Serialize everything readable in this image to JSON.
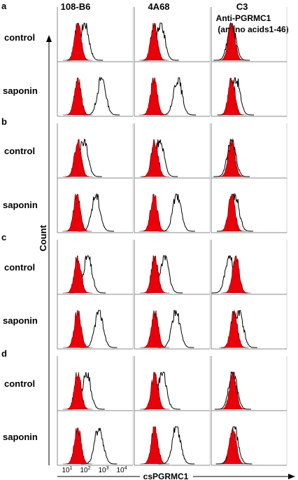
{
  "figure": {
    "columns": [
      {
        "title": "108-B6"
      },
      {
        "title": "4A68"
      },
      {
        "title": "C3",
        "subtitle_1": "Anti-PGRMC1",
        "subtitle_2": "(amino acids1-46)"
      }
    ],
    "panels": [
      {
        "label": "a",
        "rows": [
          "control",
          "saponin"
        ]
      },
      {
        "label": "b",
        "rows": [
          "control",
          "saponin"
        ]
      },
      {
        "label": "c",
        "rows": [
          "control",
          "saponin"
        ]
      },
      {
        "label": "d",
        "rows": [
          "control",
          "saponin"
        ]
      }
    ],
    "y_axis_label": "Count",
    "x_axis_label": "csPGRMC1",
    "x_ticks": [
      {
        "base": "10",
        "exp": "1"
      },
      {
        "base": "10",
        "exp": "2"
      },
      {
        "base": "10",
        "exp": "3"
      },
      {
        "base": "10",
        "exp": "4"
      }
    ],
    "colors": {
      "filled_histogram": "#e8000b",
      "open_histogram": "#000000",
      "frame": "#888888"
    },
    "chart_data": [
      {
        "type": "area",
        "panel": "a",
        "row": "control",
        "column": "108-B6",
        "log_scale_x": true,
        "xlim": [
          1,
          10000
        ],
        "filled_peak": 12,
        "open_peak": 28
      },
      {
        "type": "area",
        "panel": "a",
        "row": "control",
        "column": "4A68",
        "log_scale_x": true,
        "xlim": [
          1,
          10000
        ],
        "filled_peak": 11,
        "open_peak": 25
      },
      {
        "type": "area",
        "panel": "a",
        "row": "control",
        "column": "C3",
        "log_scale_x": true,
        "xlim": [
          1,
          10000
        ],
        "filled_peak": 12,
        "open_peak": 12
      },
      {
        "type": "area",
        "panel": "a",
        "row": "saponin",
        "column": "108-B6",
        "log_scale_x": true,
        "xlim": [
          1,
          10000
        ],
        "filled_peak": 12,
        "open_peak": 220
      },
      {
        "type": "area",
        "panel": "a",
        "row": "saponin",
        "column": "4A68",
        "log_scale_x": true,
        "xlim": [
          1,
          10000
        ],
        "filled_peak": 11,
        "open_peak": 200
      },
      {
        "type": "area",
        "panel": "a",
        "row": "saponin",
        "column": "C3",
        "log_scale_x": true,
        "xlim": [
          1,
          10000
        ],
        "filled_peak": 12,
        "open_peak": 20
      },
      {
        "type": "area",
        "panel": "b",
        "row": "control",
        "column": "108-B6",
        "log_scale_x": true,
        "xlim": [
          1,
          10000
        ],
        "filled_peak": 12,
        "open_peak": 25
      },
      {
        "type": "area",
        "panel": "b",
        "row": "control",
        "column": "4A68",
        "log_scale_x": true,
        "xlim": [
          1,
          10000
        ],
        "filled_peak": 12,
        "open_peak": 22
      },
      {
        "type": "area",
        "panel": "b",
        "row": "control",
        "column": "C3",
        "log_scale_x": true,
        "xlim": [
          1,
          10000
        ],
        "filled_peak": 12,
        "open_peak": 12
      },
      {
        "type": "area",
        "panel": "b",
        "row": "saponin",
        "column": "108-B6",
        "log_scale_x": true,
        "xlim": [
          1,
          10000
        ],
        "filled_peak": 11,
        "open_peak": 110
      },
      {
        "type": "area",
        "panel": "b",
        "row": "saponin",
        "column": "4A68",
        "log_scale_x": true,
        "xlim": [
          1,
          10000
        ],
        "filled_peak": 11,
        "open_peak": 180
      },
      {
        "type": "area",
        "panel": "b",
        "row": "saponin",
        "column": "C3",
        "log_scale_x": true,
        "xlim": [
          1,
          10000
        ],
        "filled_peak": 12,
        "open_peak": 18
      },
      {
        "type": "area",
        "panel": "c",
        "row": "control",
        "column": "108-B6",
        "log_scale_x": true,
        "xlim": [
          1,
          10000
        ],
        "filled_peak": 12,
        "open_peak": 40
      },
      {
        "type": "area",
        "panel": "c",
        "row": "control",
        "column": "4A68",
        "log_scale_x": true,
        "xlim": [
          1,
          10000
        ],
        "filled_peak": 12,
        "open_peak": 40
      },
      {
        "type": "area",
        "panel": "c",
        "row": "control",
        "column": "C3",
        "log_scale_x": true,
        "xlim": [
          1,
          10000
        ],
        "filled_peak": 20,
        "open_peak": 9
      },
      {
        "type": "area",
        "panel": "c",
        "row": "saponin",
        "column": "108-B6",
        "log_scale_x": true,
        "xlim": [
          1,
          10000
        ],
        "filled_peak": 12,
        "open_peak": 160
      },
      {
        "type": "area",
        "panel": "c",
        "row": "saponin",
        "column": "4A68",
        "log_scale_x": true,
        "xlim": [
          1,
          10000
        ],
        "filled_peak": 12,
        "open_peak": 160
      },
      {
        "type": "area",
        "panel": "c",
        "row": "saponin",
        "column": "C3",
        "log_scale_x": true,
        "xlim": [
          1,
          10000
        ],
        "filled_peak": 16,
        "open_peak": 30
      },
      {
        "type": "area",
        "panel": "d",
        "row": "control",
        "column": "108-B6",
        "log_scale_x": true,
        "xlim": [
          1,
          10000
        ],
        "filled_peak": 12,
        "open_peak": 35
      },
      {
        "type": "area",
        "panel": "d",
        "row": "control",
        "column": "4A68",
        "log_scale_x": true,
        "xlim": [
          1,
          10000
        ],
        "filled_peak": 12,
        "open_peak": 30
      },
      {
        "type": "area",
        "panel": "d",
        "row": "control",
        "column": "C3",
        "log_scale_x": true,
        "xlim": [
          1,
          10000
        ],
        "filled_peak": 14,
        "open_peak": 14
      },
      {
        "type": "area",
        "panel": "d",
        "row": "saponin",
        "column": "108-B6",
        "log_scale_x": true,
        "xlim": [
          1,
          10000
        ],
        "filled_peak": 12,
        "open_peak": 160
      },
      {
        "type": "area",
        "panel": "d",
        "row": "saponin",
        "column": "4A68",
        "log_scale_x": true,
        "xlim": [
          1,
          10000
        ],
        "filled_peak": 12,
        "open_peak": 170
      },
      {
        "type": "area",
        "panel": "d",
        "row": "saponin",
        "column": "C3",
        "log_scale_x": true,
        "xlim": [
          1,
          10000
        ],
        "filled_peak": 14,
        "open_peak": 16
      }
    ]
  }
}
